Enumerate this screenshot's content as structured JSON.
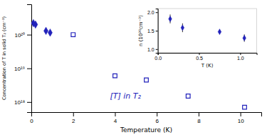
{
  "chart_data": [
    {
      "type": "scatter",
      "xlabel": "Temperature (K)",
      "ylabel": "Concentration of T in solid T₂ (cm⁻³)",
      "color": "#2222bb",
      "log": "y",
      "xlim": [
        0,
        11
      ],
      "ylim": [
        5e+17,
        8e+20
      ],
      "xticks": [
        0,
        2,
        4,
        6,
        8,
        10
      ],
      "yticks": [
        {
          "value": 1e+18,
          "label": "10¹⁸"
        },
        {
          "value": 1e+19,
          "label": "10¹⁹"
        },
        {
          "value": 1e+20,
          "label": "10²⁰"
        }
      ],
      "series": [
        {
          "marker": "diamond",
          "x": [
            0.1,
            0.2,
            0.7,
            0.9
          ],
          "values": [
            2.2e+20,
            2e+20,
            1.3e+20,
            1.15e+20
          ]
        },
        {
          "marker": "square-open",
          "x": [
            2.0,
            4.0,
            5.5,
            7.5,
            10.2
          ],
          "values": [
            1e+20,
            6e+18,
            4.5e+18,
            1.5e+18,
            7e+17
          ]
        }
      ],
      "annotations": [
        {
          "text": "[T] in T₂",
          "x": 4.5,
          "y": 1.5e+18
        }
      ]
    },
    {
      "type": "scatter",
      "xlabel": "T (K)",
      "ylabel": "n (10²⁰cm⁻³)",
      "color": "#2222bb",
      "xlim": [
        0,
        1.2
      ],
      "ylim": [
        0.9,
        2.1
      ],
      "xticks": [
        {
          "value": 0,
          "label": "0.0"
        },
        0.5,
        {
          "value": 1.0,
          "label": "1.0"
        }
      ],
      "yticks": [
        {
          "value": 1.0,
          "label": "1.0"
        },
        1.5,
        {
          "value": 2.0,
          "label": "2.0"
        }
      ],
      "series": [
        {
          "marker": "diamond",
          "x": [
            0.15,
            0.3,
            0.75,
            1.05
          ],
          "values": [
            1.82,
            1.58,
            1.47,
            1.3
          ],
          "errors": [
            0.12,
            0.12,
            0.06,
            0.1
          ]
        }
      ]
    }
  ]
}
